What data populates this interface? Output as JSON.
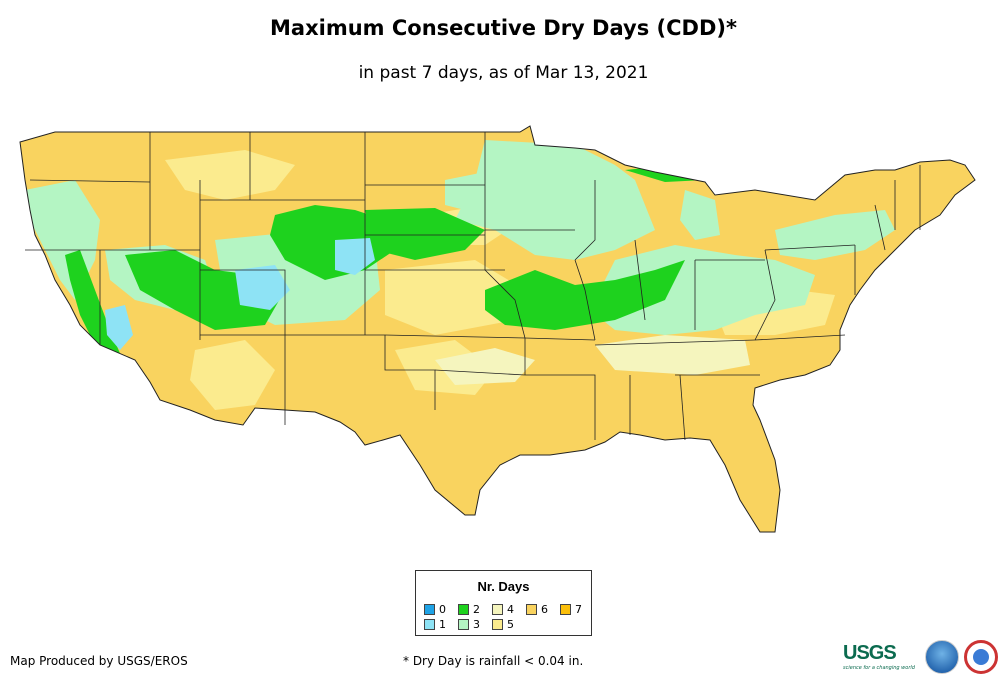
{
  "title": "Maximum Consecutive Dry Days (CDD)*",
  "subtitle": "in past 7 days, as of Mar 13, 2021",
  "legend": {
    "title": "Nr. Days",
    "items": [
      {
        "label": "0",
        "color": "#1fa3e6"
      },
      {
        "label": "1",
        "color": "#8ee3f5"
      },
      {
        "label": "2",
        "color": "#1ed21e"
      },
      {
        "label": "3",
        "color": "#b4f5c3"
      },
      {
        "label": "4",
        "color": "#f5f5be"
      },
      {
        "label": "5",
        "color": "#fbeb8e"
      },
      {
        "label": "6",
        "color": "#f9d35f"
      },
      {
        "label": "7",
        "color": "#fbbf0a"
      }
    ]
  },
  "footer": {
    "credit": "Map Produced by USGS/EROS",
    "note": "* Dry Day is rainfall < 0.04 in."
  },
  "logos": {
    "usgs": "USGS",
    "usgs_tagline": "science for a changing world"
  },
  "colors": {
    "background": "#ffffff",
    "state_border": "#222222",
    "base_fill": "#f9d35f"
  }
}
